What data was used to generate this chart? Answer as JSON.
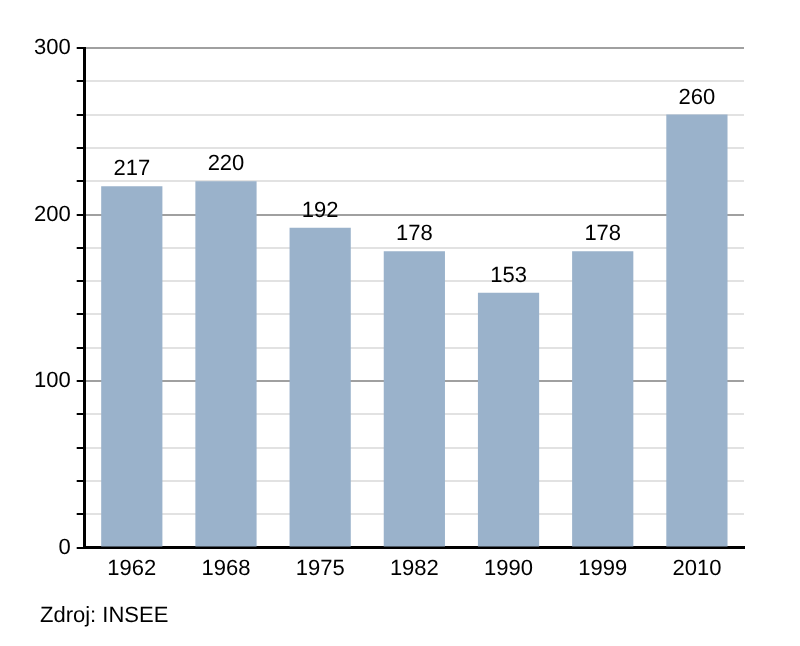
{
  "chart_data": {
    "type": "bar",
    "categories": [
      "1962",
      "1968",
      "1975",
      "1982",
      "1990",
      "1999",
      "2010"
    ],
    "values": [
      217,
      220,
      192,
      178,
      153,
      178,
      260
    ],
    "color": "#9ab2cb",
    "ylim": [
      0,
      300
    ],
    "yticks": [
      0,
      {
        "value": 20,
        "label": null
      },
      {
        "value": 40,
        "label": null
      },
      {
        "value": 60,
        "label": null
      },
      {
        "value": 80,
        "label": null
      },
      100,
      {
        "value": 120,
        "label": null
      },
      {
        "value": 140,
        "label": null
      },
      {
        "value": 160,
        "label": null
      },
      {
        "value": 180,
        "label": null
      },
      200,
      {
        "value": 220,
        "label": null
      },
      {
        "value": 240,
        "label": null
      },
      {
        "value": 260,
        "label": null
      },
      {
        "value": 280,
        "label": null
      },
      300
    ],
    "grid": "y",
    "data_labels": true,
    "legend": false,
    "annotations": [
      "Zdroj: INSEE"
    ]
  }
}
